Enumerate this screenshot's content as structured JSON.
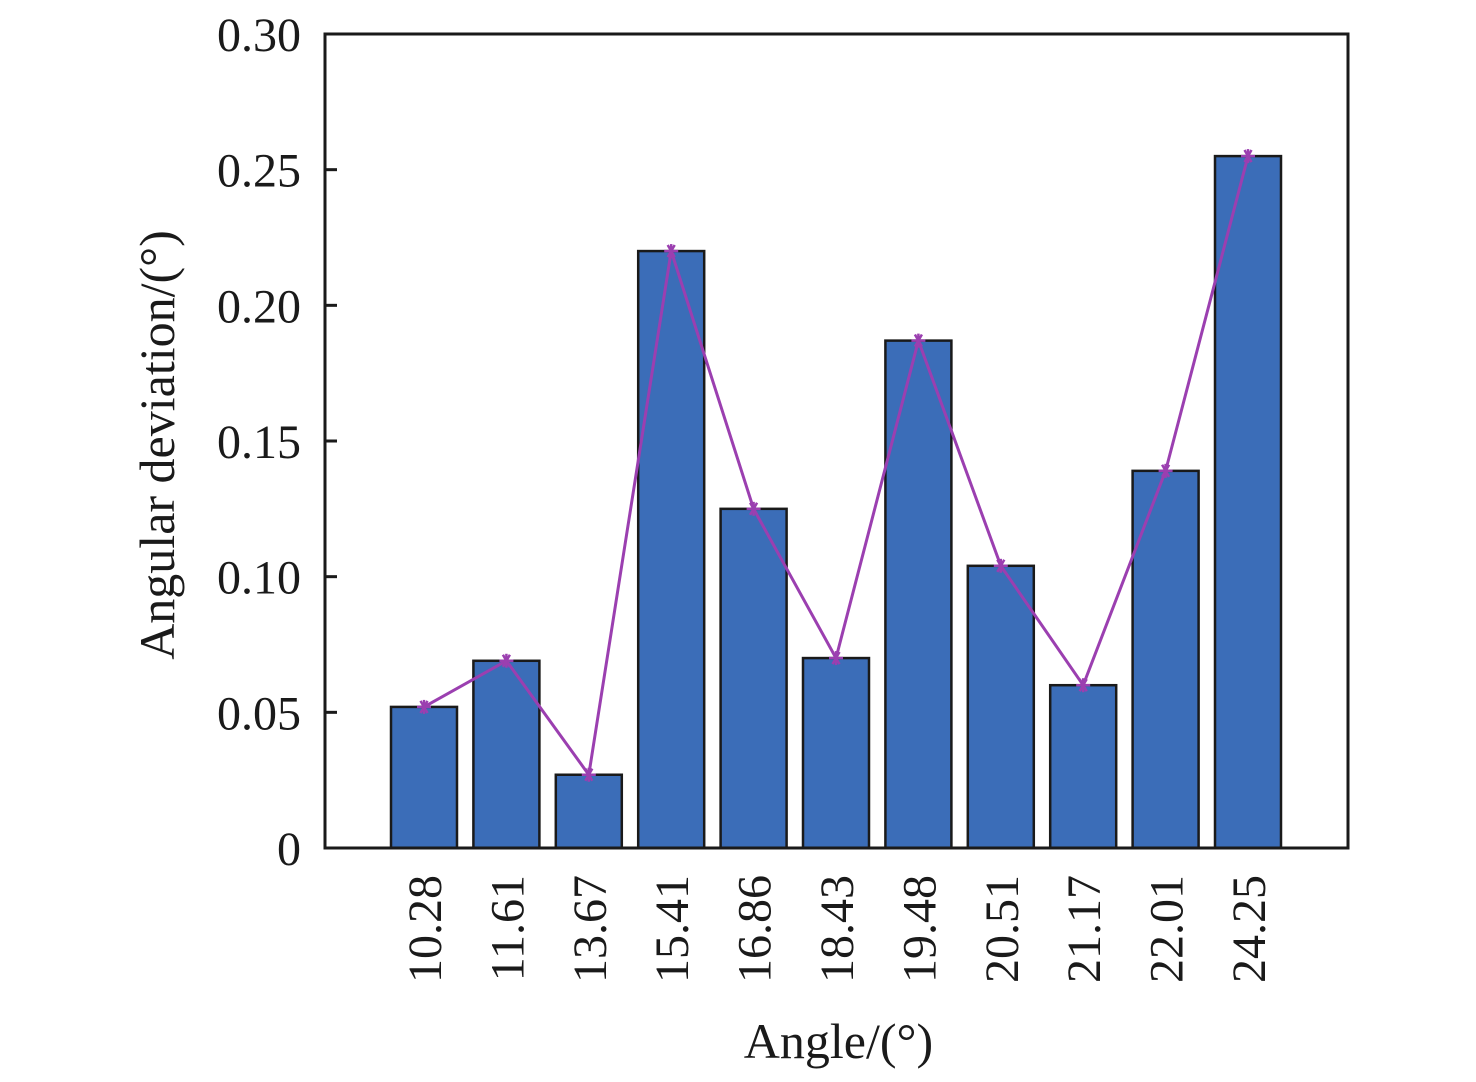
{
  "chart_data": {
    "type": "bar",
    "title": "",
    "xlabel": "Angle/(°)",
    "ylabel": "Angular deviation/(°)",
    "categories": [
      "10.28",
      "11.61",
      "13.67",
      "15.41",
      "16.86",
      "18.43",
      "19.48",
      "20.51",
      "21.17",
      "22.01",
      "24.25"
    ],
    "values": [
      0.052,
      0.069,
      0.027,
      0.22,
      0.125,
      0.07,
      0.187,
      0.104,
      0.06,
      0.139,
      0.255
    ],
    "overlay_line_values": [
      0.052,
      0.069,
      0.027,
      0.22,
      0.125,
      0.07,
      0.187,
      0.104,
      0.06,
      0.139,
      0.255
    ],
    "ylim": [
      0,
      0.3
    ],
    "yticks": [
      0,
      0.05,
      0.1,
      0.15,
      0.2,
      0.25,
      0.3
    ],
    "ytick_labels": [
      "0",
      "0.05",
      "0.10",
      "0.15",
      "0.20",
      "0.25",
      "0.30"
    ],
    "grid": false,
    "legend": "none",
    "colors": {
      "bar_fill": "#3b6db8",
      "bar_stroke": "#1a1a1a",
      "line": "#9b3fb0",
      "axis": "#1a1a1a"
    }
  }
}
